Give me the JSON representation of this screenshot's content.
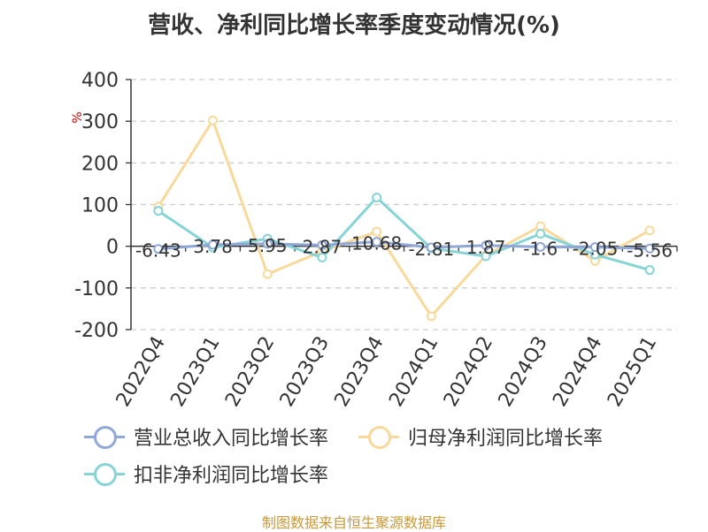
{
  "chart_data": {
    "type": "line",
    "title": "营收、净利同比增长率季度变动情况(%)",
    "ylabel": "%",
    "xlabel": "",
    "categories": [
      "2022Q4",
      "2023Q1",
      "2023Q2",
      "2023Q3",
      "2023Q4",
      "2024Q1",
      "2024Q2",
      "2024Q3",
      "2024Q4",
      "2025Q1"
    ],
    "yticks": [
      "400",
      "300",
      "200",
      "100",
      "0",
      "-100",
      "-200"
    ],
    "ylim": [
      -200,
      400
    ],
    "grid": true,
    "legend_position": "bottom",
    "series": [
      {
        "name": "营业总收入同比增长率",
        "color": "#8fa8d8",
        "values": [
          -6.43,
          3.78,
          5.95,
          2.87,
          10.68,
          -2.81,
          1.87,
          -1.6,
          -2.05,
          -5.56
        ],
        "data_labels": [
          "-6.43",
          "3.78",
          "5.95",
          "2.87",
          "10.68",
          "-2.81",
          "1.87",
          "-1.6",
          "-2.05",
          "-5.56"
        ]
      },
      {
        "name": "归母净利润同比增长率",
        "color": "#f9d99a",
        "values": [
          95,
          302,
          -67,
          -12,
          35,
          -168,
          -22,
          48,
          -35,
          38
        ],
        "data_labels": []
      },
      {
        "name": "扣非净利润同比增长率",
        "color": "#86d4d6",
        "values": [
          85,
          -3,
          18,
          -27,
          117,
          -5,
          -24,
          30,
          -20,
          -57
        ],
        "data_labels": []
      }
    ]
  },
  "source_note": "制图数据来自恒生聚源数据库",
  "colors": {
    "axis": "#333333",
    "grid": "#cccccc",
    "title": "#333333",
    "ylabel": "#cc0000",
    "source": "#c8993a"
  }
}
